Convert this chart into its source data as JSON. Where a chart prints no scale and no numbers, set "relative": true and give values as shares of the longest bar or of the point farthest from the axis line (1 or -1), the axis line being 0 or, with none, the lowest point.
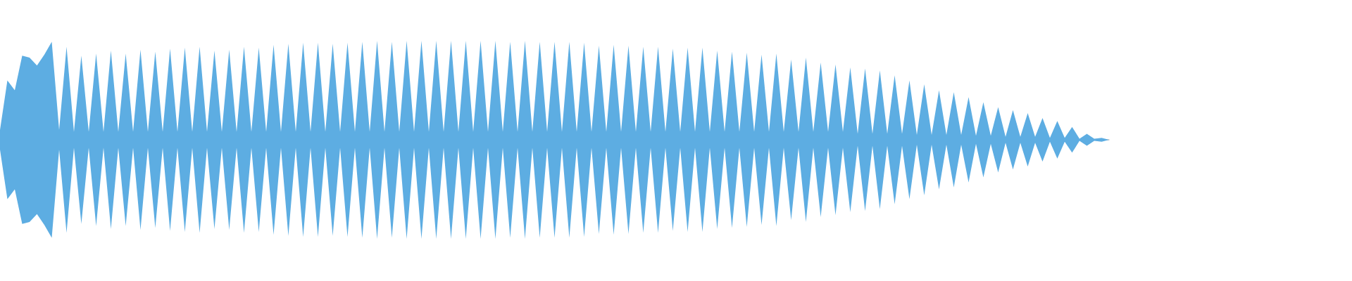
{
  "chart_data": {
    "type": "area",
    "relative": true,
    "categories": [
      null,
      null,
      null,
      null,
      null,
      null,
      null,
      null,
      null,
      null,
      null,
      null,
      null,
      null,
      null,
      null,
      null,
      null,
      null,
      null,
      null,
      null,
      null,
      null,
      null,
      null,
      null,
      null,
      null,
      null,
      null,
      null,
      null,
      null,
      null,
      null,
      null,
      null,
      null,
      null,
      null,
      null,
      null,
      null,
      null,
      null,
      null,
      null,
      null,
      null,
      null,
      null,
      null,
      null,
      null,
      null,
      null,
      null,
      null,
      null,
      null,
      null,
      null,
      null,
      null,
      null,
      null,
      null,
      null,
      null,
      null,
      null,
      null,
      null,
      null,
      null,
      null,
      null,
      null,
      null,
      null,
      null,
      null,
      null,
      null,
      null,
      null,
      null,
      null,
      null,
      null,
      null,
      null,
      null,
      null,
      null,
      null,
      null,
      null,
      null,
      null,
      null,
      null,
      null,
      null,
      null,
      null,
      null,
      null,
      null,
      null,
      null,
      null,
      null,
      null,
      null,
      null,
      null,
      null,
      null,
      null,
      null,
      null,
      null,
      null,
      null,
      null,
      null,
      null,
      null,
      null,
      null,
      null,
      null,
      null,
      null,
      null,
      null,
      null,
      null,
      null,
      null,
      null,
      null,
      null,
      null,
      null,
      null,
      null,
      null,
      null
    ],
    "series": [
      {
        "color": "#5dade2",
        "values": [
          0.1,
          0.6,
          0.5,
          0.85,
          0.83,
          0.75,
          0.86,
          0.99,
          0.1,
          0.94,
          0.08,
          0.85,
          0.08,
          0.87,
          0.08,
          0.9,
          0.08,
          0.87,
          0.08,
          0.91,
          0.08,
          0.89,
          0.08,
          0.92,
          0.08,
          0.93,
          0.08,
          0.94,
          0.08,
          0.9,
          0.08,
          0.91,
          0.08,
          0.94,
          0.08,
          0.93,
          0.08,
          0.96,
          0.08,
          0.97,
          0.08,
          0.98,
          0.08,
          0.98,
          0.08,
          0.97,
          0.08,
          0.98,
          0.08,
          0.99,
          0.08,
          1,
          0.08,
          0.99,
          0.08,
          1,
          0.08,
          1,
          0.08,
          1,
          0.08,
          1,
          0.08,
          1,
          0.08,
          1,
          0.08,
          1,
          0.08,
          0.99,
          0.08,
          1,
          0.08,
          0.99,
          0.08,
          0.99,
          0.08,
          0.99,
          0.08,
          0.98,
          0.08,
          0.95,
          0.08,
          0.96,
          0.08,
          0.95,
          0.08,
          0.94,
          0.08,
          0.94,
          0.08,
          0.92,
          0.08,
          0.93,
          0.08,
          0.93,
          0.08,
          0.9,
          0.08,
          0.89,
          0.08,
          0.88,
          0.08,
          0.86,
          0.08,
          0.87,
          0.08,
          0.81,
          0.08,
          0.83,
          0.08,
          0.78,
          0.08,
          0.76,
          0.08,
          0.73,
          0.06,
          0.72,
          0.06,
          0.7,
          0.06,
          0.65,
          0.06,
          0.6,
          0.05,
          0.56,
          0.05,
          0.5,
          0.05,
          0.48,
          0.05,
          0.43,
          0.04,
          0.38,
          0.04,
          0.33,
          0.03,
          0.3,
          0.03,
          0.27,
          0.03,
          0.22,
          0.02,
          0.19,
          0.02,
          0.13,
          0.01,
          0.06,
          0.01,
          0.02,
          0
        ]
      },
      {
        "color": "#5dade2",
        "values": [
          -0.1,
          -0.6,
          -0.5,
          -0.85,
          -0.83,
          -0.75,
          -0.86,
          -0.99,
          -0.1,
          -0.94,
          -0.08,
          -0.85,
          -0.08,
          -0.87,
          -0.08,
          -0.9,
          -0.08,
          -0.87,
          -0.08,
          -0.91,
          -0.08,
          -0.89,
          -0.08,
          -0.92,
          -0.08,
          -0.93,
          -0.08,
          -0.94,
          -0.08,
          -0.9,
          -0.08,
          -0.91,
          -0.08,
          -0.94,
          -0.08,
          -0.93,
          -0.08,
          -0.96,
          -0.08,
          -0.97,
          -0.08,
          -0.98,
          -0.08,
          -0.98,
          -0.08,
          -0.97,
          -0.08,
          -0.98,
          -0.08,
          -0.99,
          -0.08,
          -1,
          -0.08,
          -0.99,
          -0.08,
          -1,
          -0.08,
          -1,
          -0.08,
          -1,
          -0.08,
          -1,
          -0.08,
          -1,
          -0.08,
          -1,
          -0.08,
          -1,
          -0.08,
          -0.99,
          -0.08,
          -1,
          -0.08,
          -0.99,
          -0.08,
          -0.99,
          -0.08,
          -0.99,
          -0.08,
          -0.98,
          -0.08,
          -0.95,
          -0.08,
          -0.96,
          -0.08,
          -0.95,
          -0.08,
          -0.94,
          -0.08,
          -0.94,
          -0.08,
          -0.92,
          -0.08,
          -0.93,
          -0.08,
          -0.93,
          -0.08,
          -0.9,
          -0.08,
          -0.89,
          -0.08,
          -0.88,
          -0.08,
          -0.86,
          -0.08,
          -0.87,
          -0.08,
          -0.81,
          -0.08,
          -0.83,
          -0.08,
          -0.78,
          -0.08,
          -0.76,
          -0.08,
          -0.73,
          -0.06,
          -0.72,
          -0.06,
          -0.7,
          -0.06,
          -0.65,
          -0.06,
          -0.6,
          -0.05,
          -0.56,
          -0.05,
          -0.5,
          -0.05,
          -0.48,
          -0.05,
          -0.43,
          -0.04,
          -0.38,
          -0.04,
          -0.33,
          -0.03,
          -0.3,
          -0.03,
          -0.27,
          -0.03,
          -0.22,
          -0.02,
          -0.19,
          -0.02,
          -0.13,
          -0.01,
          -0.06,
          -0.01,
          -0.02,
          0
        ]
      }
    ]
  }
}
